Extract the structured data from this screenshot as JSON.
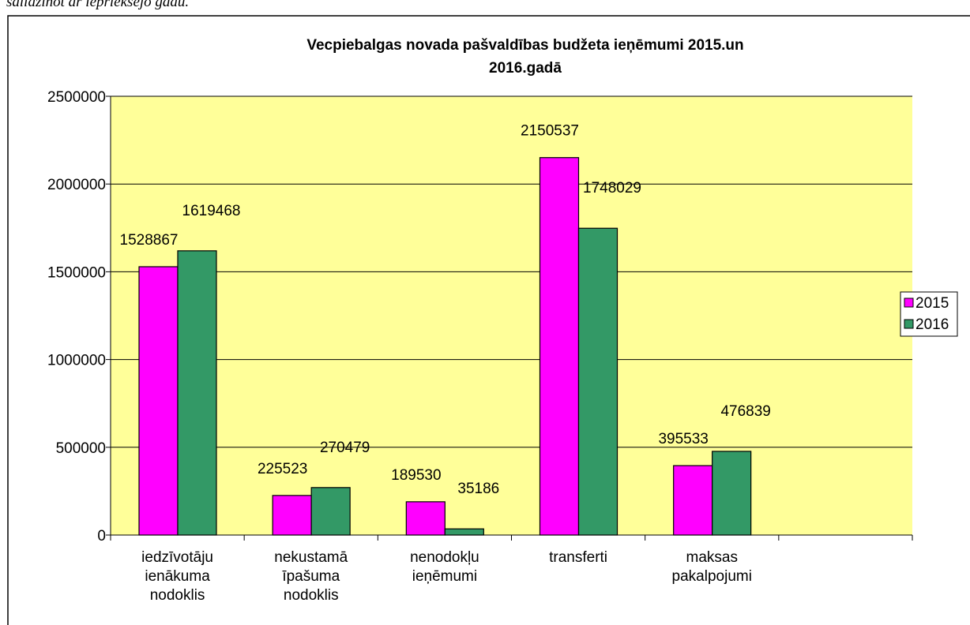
{
  "caption": "salīdzinot ar iepriekšējo gadu.",
  "chart_data": {
    "type": "bar",
    "title": "Vecpiebalgas novada pašvaldības budžeta ieņēmumi 2015.un\n2016.gadā",
    "categories": [
      "iedzīvotāju\nienākuma\nnodoklis",
      "nekustamā\nīpašuma\nnodoklis",
      "nenodokļu\nieņēmumi",
      "transferti",
      "maksas\npakalpojumi",
      null
    ],
    "series": [
      {
        "name": "2015",
        "color": "#ff00ff",
        "values": [
          1528867,
          225523,
          189530,
          2150537,
          395533,
          null
        ]
      },
      {
        "name": "2016",
        "color": "#339966",
        "values": [
          1619468,
          270479,
          35186,
          1748029,
          476839,
          null
        ]
      }
    ],
    "ylim": [
      0,
      2500000
    ],
    "yticks": [
      0,
      500000,
      1000000,
      1500000,
      2000000,
      2500000
    ],
    "grid": true,
    "legend": "right",
    "plot_background": "#ffff99"
  }
}
